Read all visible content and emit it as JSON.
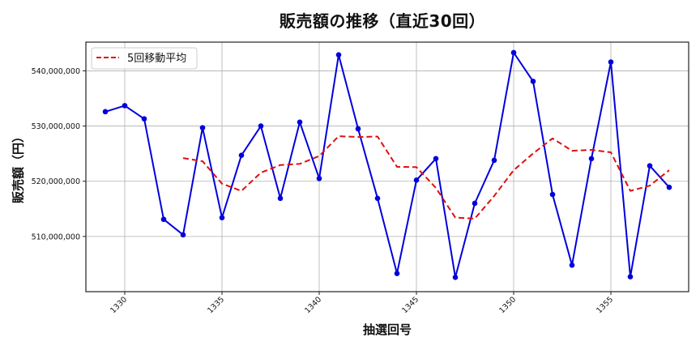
{
  "chart_data": {
    "type": "line",
    "title": "販売額の推移（直近30回）",
    "xlabel": "抽選回号",
    "ylabel": "販売額（円）",
    "x": [
      1329,
      1330,
      1331,
      1332,
      1333,
      1334,
      1335,
      1336,
      1337,
      1338,
      1339,
      1340,
      1341,
      1342,
      1343,
      1344,
      1345,
      1346,
      1347,
      1348,
      1349,
      1350,
      1351,
      1352,
      1353,
      1354,
      1355,
      1356,
      1357,
      1358
    ],
    "series": [
      {
        "name": "販売額",
        "color": "#0000dd",
        "style": "solid-with-markers",
        "show_in_legend": false,
        "values": [
          532600000,
          533700000,
          531300000,
          513100000,
          510300000,
          529700000,
          513400000,
          524700000,
          530000000,
          516900000,
          530700000,
          520500000,
          542900000,
          529500000,
          516900000,
          503300000,
          520200000,
          524100000,
          502600000,
          516000000,
          523800000,
          543300000,
          538100000,
          517600000,
          504800000,
          524100000,
          541600000,
          502700000,
          522800000,
          518900000
        ]
      },
      {
        "name": "5回移動平均",
        "color": "#dd1111",
        "style": "dashed",
        "show_in_legend": true,
        "values": [
          null,
          null,
          null,
          null,
          524200000,
          523620000,
          519560000,
          518240000,
          521560000,
          522940000,
          523140000,
          524560000,
          528160000,
          528020000,
          528100000,
          522620000,
          522560000,
          518800000,
          513420000,
          513240000,
          517340000,
          522000000,
          525040000,
          527760000,
          525520000,
          525680000,
          525240000,
          518260000,
          519200000,
          522020000
        ]
      }
    ],
    "x_ticks": [
      1330,
      1335,
      1340,
      1345,
      1350,
      1355
    ],
    "x_tick_rotation": 45,
    "y_ticks": [
      510000000,
      520000000,
      530000000,
      540000000
    ],
    "y_tick_labels": [
      "510,000,000",
      "520,000,000",
      "530,000,000",
      "540,000,000"
    ],
    "xlim": [
      1328,
      1359
    ],
    "ylim": [
      500000000,
      545200000
    ],
    "grid": true,
    "legend": {
      "position": "upper left",
      "entries": [
        "5回移動平均"
      ]
    }
  }
}
